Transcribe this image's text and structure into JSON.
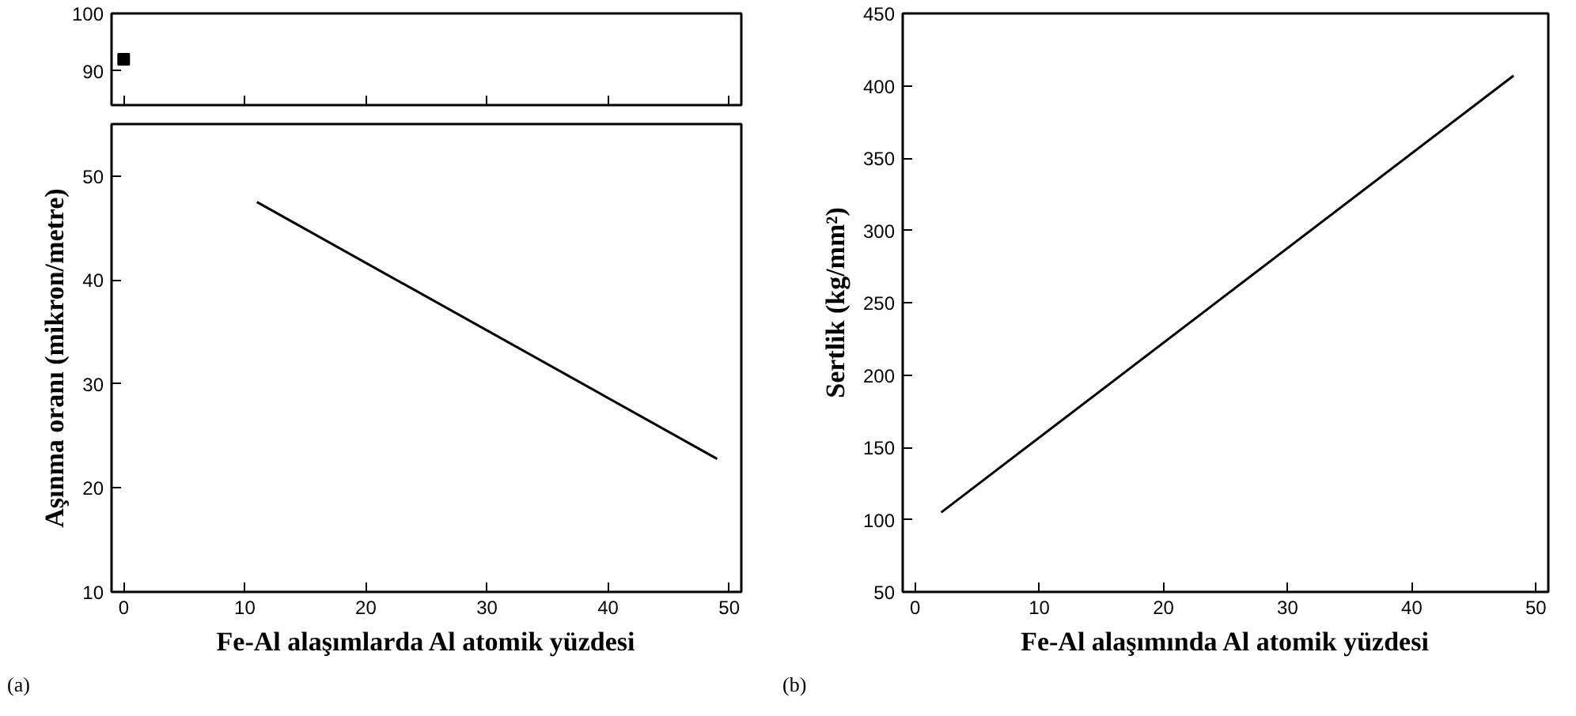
{
  "chart_data": [
    {
      "type": "scatter",
      "x": [
        0
      ],
      "values": [
        92
      ],
      "xlim": [
        -1,
        51
      ],
      "ylim": [
        84,
        100
      ],
      "xticks": [
        0,
        10,
        20,
        30,
        40,
        50
      ],
      "yticks": [
        90,
        100
      ],
      "tick_labels": "y",
      "marker": "square",
      "color": "#000000"
    },
    {
      "type": "line",
      "x": [
        11,
        49
      ],
      "values": [
        47.5,
        22.8
      ],
      "xlim": [
        -1,
        51
      ],
      "ylim": [
        10,
        55
      ],
      "xticks": [
        0,
        10,
        20,
        30,
        40,
        50
      ],
      "yticks": [
        10,
        20,
        30,
        40,
        50
      ],
      "xlabel": "Fe-Al alaşımlarda Al atomik yüzdesi",
      "ylabel": "Aşınma oranı (mikron/metre)",
      "annotations": [
        "(a)"
      ],
      "color": "#000000"
    },
    {
      "type": "line",
      "x": [
        2.1,
        48.2
      ],
      "values": [
        105,
        407
      ],
      "xlim": [
        -1,
        51
      ],
      "ylim": [
        50,
        450
      ],
      "xticks": [
        0,
        10,
        20,
        30,
        40,
        50
      ],
      "yticks": [
        50,
        100,
        150,
        200,
        250,
        300,
        350,
        400,
        450
      ],
      "xlabel": "Fe-Al alaşımında Al atomik yüzdesi",
      "ylabel": "Sertlik (kg/mm²)",
      "annotations": [
        "(b)"
      ],
      "color": "#000000"
    }
  ]
}
